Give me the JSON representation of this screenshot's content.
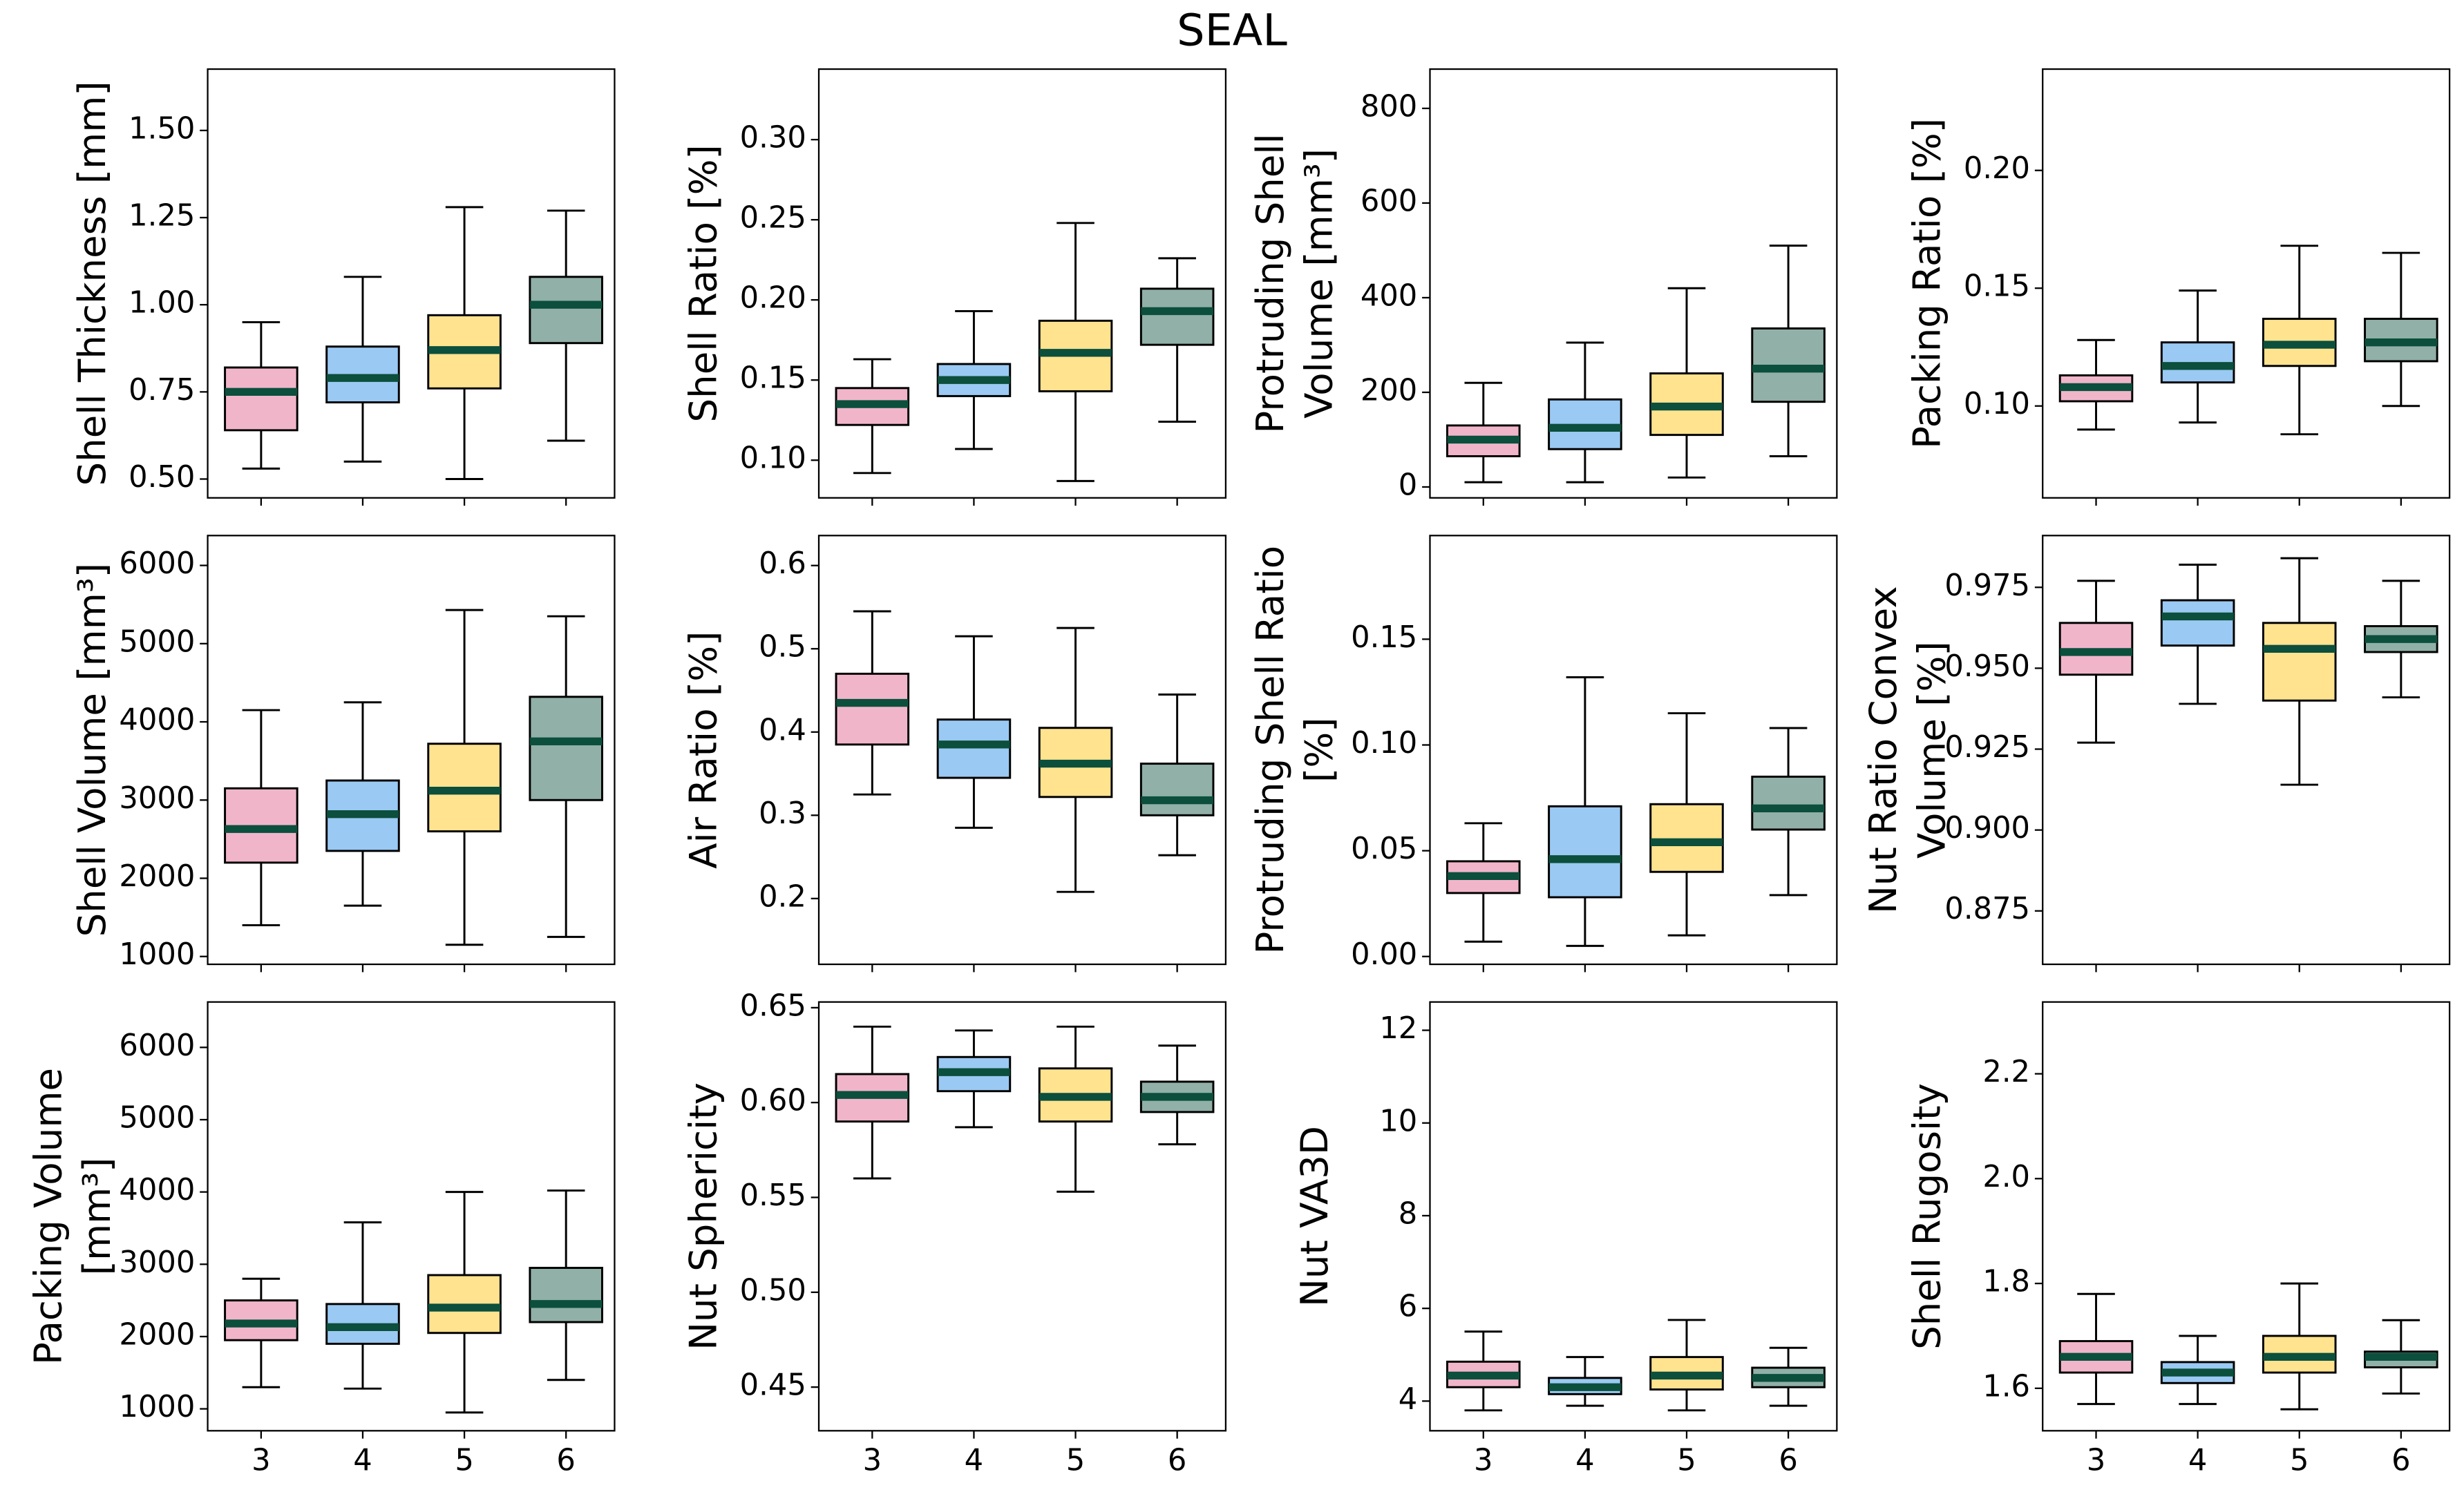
{
  "title": "SEAL",
  "chart_data": [
    {
      "type": "box",
      "ylabel": "Shell Thickness [mm]",
      "ylim": [
        0.446,
        1.676
      ],
      "yticks": [
        {
          "value": 0.5,
          "label": "0.50"
        },
        0.75,
        {
          "value": 1.0,
          "label": "1.00"
        },
        1.25,
        {
          "value": 1.5,
          "label": "1.50"
        }
      ],
      "colors": [
        "#e05a8a",
        "#1e88e5",
        "#ffc107",
        "#0b4f3c"
      ],
      "median_color": "#0b4f3c",
      "boxes": [
        {
          "whislo": 0.53,
          "q1": 0.64,
          "med": 0.75,
          "q3": 0.82,
          "whishi": 0.95
        },
        {
          "whislo": 0.55,
          "q1": 0.72,
          "med": 0.79,
          "q3": 0.88,
          "whishi": 1.08
        },
        {
          "whislo": 0.5,
          "q1": 0.76,
          "med": 0.87,
          "q3": 0.97,
          "whishi": 1.28
        },
        {
          "whislo": 0.61,
          "q1": 0.89,
          "med": 1.0,
          "q3": 1.08,
          "whishi": 1.27
        }
      ]
    },
    {
      "type": "box",
      "ylabel": "Shell Ratio [%]",
      "ylim": [
        0.0765,
        0.344
      ],
      "yticks": [
        {
          "value": 0.1,
          "label": "0.10"
        },
        0.15,
        {
          "value": 0.2,
          "label": "0.20"
        },
        0.25,
        {
          "value": 0.3,
          "label": "0.30"
        }
      ],
      "colors": [
        "#e05a8a",
        "#1e88e5",
        "#ffc107",
        "#0b4f3c"
      ],
      "median_color": "#0b4f3c",
      "boxes": [
        {
          "whislo": 0.092,
          "q1": 0.122,
          "med": 0.135,
          "q3": 0.145,
          "whishi": 0.163
        },
        {
          "whislo": 0.107,
          "q1": 0.14,
          "med": 0.15,
          "q3": 0.16,
          "whishi": 0.193
        },
        {
          "whislo": 0.087,
          "q1": 0.143,
          "med": 0.167,
          "q3": 0.187,
          "whishi": 0.248
        },
        {
          "whislo": 0.124,
          "q1": 0.172,
          "med": 0.193,
          "q3": 0.207,
          "whishi": 0.226
        }
      ]
    },
    {
      "type": "box",
      "ylabel": [
        "Protruding Shell",
        "Volume [mm³]"
      ],
      "ylim": [
        -23,
        883
      ],
      "yticks": [
        0,
        200,
        400,
        600,
        800
      ],
      "colors": [
        "#e05a8a",
        "#1e88e5",
        "#ffc107",
        "#0b4f3c"
      ],
      "median_color": "#0b4f3c",
      "boxes": [
        {
          "whislo": 10,
          "q1": 65,
          "med": 100,
          "q3": 130,
          "whishi": 220
        },
        {
          "whislo": 10,
          "q1": 80,
          "med": 125,
          "q3": 185,
          "whishi": 305
        },
        {
          "whislo": 20,
          "q1": 110,
          "med": 170,
          "q3": 240,
          "whishi": 420
        },
        {
          "whislo": 65,
          "q1": 180,
          "med": 250,
          "q3": 335,
          "whishi": 510
        }
      ]
    },
    {
      "type": "box",
      "ylabel": "Packing Ratio [%]",
      "ylim": [
        0.061,
        0.243
      ],
      "yticks": [
        {
          "value": 0.1,
          "label": "0.10"
        },
        0.15,
        {
          "value": 0.2,
          "label": "0.20"
        }
      ],
      "colors": [
        "#e05a8a",
        "#1e88e5",
        "#ffc107",
        "#0b4f3c"
      ],
      "median_color": "#0b4f3c",
      "boxes": [
        {
          "whislo": 0.09,
          "q1": 0.102,
          "med": 0.108,
          "q3": 0.113,
          "whishi": 0.128
        },
        {
          "whislo": 0.093,
          "q1": 0.11,
          "med": 0.117,
          "q3": 0.127,
          "whishi": 0.149
        },
        {
          "whislo": 0.088,
          "q1": 0.117,
          "med": 0.126,
          "q3": 0.137,
          "whishi": 0.168
        },
        {
          "whislo": 0.1,
          "q1": 0.119,
          "med": 0.127,
          "q3": 0.137,
          "whishi": 0.165
        }
      ]
    },
    {
      "type": "box",
      "ylabel": "Shell Volume [mm³]",
      "ylim": [
        900,
        6382
      ],
      "yticks": [
        1000,
        2000,
        3000,
        4000,
        5000,
        6000
      ],
      "colors": [
        "#e05a8a",
        "#1e88e5",
        "#ffc107",
        "#0b4f3c"
      ],
      "median_color": "#0b4f3c",
      "boxes": [
        {
          "whislo": 1400,
          "q1": 2200,
          "med": 2630,
          "q3": 3150,
          "whishi": 4150
        },
        {
          "whislo": 1650,
          "q1": 2350,
          "med": 2820,
          "q3": 3250,
          "whishi": 4250
        },
        {
          "whislo": 1150,
          "q1": 2600,
          "med": 3120,
          "q3": 3720,
          "whishi": 5430
        },
        {
          "whislo": 1250,
          "q1": 3000,
          "med": 3750,
          "q3": 4320,
          "whishi": 5350
        }
      ]
    },
    {
      "type": "box",
      "ylabel": "Air Ratio [%]",
      "ylim": [
        0.121,
        0.636
      ],
      "yticks": [
        0.2,
        0.3,
        0.4,
        0.5,
        0.6
      ],
      "colors": [
        "#e05a8a",
        "#1e88e5",
        "#ffc107",
        "#0b4f3c"
      ],
      "median_color": "#0b4f3c",
      "boxes": [
        {
          "whislo": 0.325,
          "q1": 0.385,
          "med": 0.435,
          "q3": 0.47,
          "whishi": 0.545
        },
        {
          "whislo": 0.285,
          "q1": 0.345,
          "med": 0.385,
          "q3": 0.415,
          "whishi": 0.515
        },
        {
          "whislo": 0.208,
          "q1": 0.322,
          "med": 0.362,
          "q3": 0.405,
          "whishi": 0.525
        },
        {
          "whislo": 0.252,
          "q1": 0.3,
          "med": 0.318,
          "q3": 0.362,
          "whishi": 0.445
        }
      ]
    },
    {
      "type": "box",
      "ylabel": [
        "Protruding Shell Ratio",
        "[%]"
      ],
      "ylim": [
        -0.0037,
        0.199
      ],
      "yticks": [
        {
          "value": 0,
          "label": "0.00"
        },
        0.05,
        {
          "value": 0.1,
          "label": "0.10"
        },
        0.15
      ],
      "colors": [
        "#e05a8a",
        "#1e88e5",
        "#ffc107",
        "#0b4f3c"
      ],
      "median_color": "#0b4f3c",
      "boxes": [
        {
          "whislo": 0.007,
          "q1": 0.03,
          "med": 0.038,
          "q3": 0.045,
          "whishi": 0.063
        },
        {
          "whislo": 0.005,
          "q1": 0.028,
          "med": 0.046,
          "q3": 0.071,
          "whishi": 0.132
        },
        {
          "whislo": 0.01,
          "q1": 0.04,
          "med": 0.054,
          "q3": 0.072,
          "whishi": 0.115
        },
        {
          "whislo": 0.029,
          "q1": 0.06,
          "med": 0.07,
          "q3": 0.085,
          "whishi": 0.108
        }
      ]
    },
    {
      "type": "box",
      "ylabel": [
        "Nut Ratio Convex",
        "Volume [%]"
      ],
      "ylim": [
        0.8585,
        0.991
      ],
      "yticks": [
        0.875,
        {
          "value": 0.9,
          "label": "0.900"
        },
        0.925,
        {
          "value": 0.95,
          "label": "0.950"
        },
        0.975
      ],
      "colors": [
        "#e05a8a",
        "#1e88e5",
        "#ffc107",
        "#0b4f3c"
      ],
      "median_color": "#0b4f3c",
      "boxes": [
        {
          "whislo": 0.927,
          "q1": 0.948,
          "med": 0.955,
          "q3": 0.964,
          "whishi": 0.977
        },
        {
          "whislo": 0.939,
          "q1": 0.957,
          "med": 0.966,
          "q3": 0.971,
          "whishi": 0.982
        },
        {
          "whislo": 0.914,
          "q1": 0.94,
          "med": 0.956,
          "q3": 0.964,
          "whishi": 0.984
        },
        {
          "whislo": 0.941,
          "q1": 0.955,
          "med": 0.959,
          "q3": 0.963,
          "whishi": 0.977
        }
      ]
    },
    {
      "type": "box",
      "ylabel": [
        "Packing Volume",
        "[mm³]"
      ],
      "ylim": [
        697,
        6628
      ],
      "yticks": [
        1000,
        2000,
        3000,
        4000,
        5000,
        6000
      ],
      "categories": [
        "3",
        "4",
        "5",
        "6"
      ],
      "colors": [
        "#e05a8a",
        "#1e88e5",
        "#ffc107",
        "#0b4f3c"
      ],
      "median_color": "#0b4f3c",
      "boxes": [
        {
          "whislo": 1300,
          "q1": 1950,
          "med": 2180,
          "q3": 2500,
          "whishi": 2800
        },
        {
          "whislo": 1280,
          "q1": 1900,
          "med": 2130,
          "q3": 2450,
          "whishi": 3580
        },
        {
          "whislo": 950,
          "q1": 2050,
          "med": 2400,
          "q3": 2850,
          "whishi": 4000
        },
        {
          "whislo": 1400,
          "q1": 2200,
          "med": 2450,
          "q3": 2950,
          "whishi": 4020
        }
      ]
    },
    {
      "type": "box",
      "ylabel": "Nut Sphericity",
      "ylim": [
        0.427,
        0.653
      ],
      "yticks": [
        0.45,
        {
          "value": 0.5,
          "label": "0.50"
        },
        0.55,
        {
          "value": 0.6,
          "label": "0.60"
        },
        0.65
      ],
      "categories": [
        "3",
        "4",
        "5",
        "6"
      ],
      "colors": [
        "#e05a8a",
        "#1e88e5",
        "#ffc107",
        "#0b4f3c"
      ],
      "median_color": "#0b4f3c",
      "boxes": [
        {
          "whislo": 0.56,
          "q1": 0.59,
          "med": 0.604,
          "q3": 0.615,
          "whishi": 0.64
        },
        {
          "whislo": 0.587,
          "q1": 0.606,
          "med": 0.616,
          "q3": 0.624,
          "whishi": 0.638
        },
        {
          "whislo": 0.553,
          "q1": 0.59,
          "med": 0.603,
          "q3": 0.618,
          "whishi": 0.64
        },
        {
          "whislo": 0.578,
          "q1": 0.595,
          "med": 0.603,
          "q3": 0.611,
          "whishi": 0.63
        }
      ]
    },
    {
      "type": "box",
      "ylabel": "Nut VA3D",
      "ylim": [
        3.36,
        12.61
      ],
      "yticks": [
        4,
        6,
        8,
        10,
        12
      ],
      "categories": [
        "3",
        "4",
        "5",
        "6"
      ],
      "colors": [
        "#e05a8a",
        "#1e88e5",
        "#ffc107",
        "#0b4f3c"
      ],
      "median_color": "#0b4f3c",
      "boxes": [
        {
          "whislo": 3.8,
          "q1": 4.3,
          "med": 4.55,
          "q3": 4.85,
          "whishi": 5.5
        },
        {
          "whislo": 3.9,
          "q1": 4.15,
          "med": 4.3,
          "q3": 4.5,
          "whishi": 4.95
        },
        {
          "whislo": 3.8,
          "q1": 4.25,
          "med": 4.55,
          "q3": 4.95,
          "whishi": 5.75
        },
        {
          "whislo": 3.9,
          "q1": 4.3,
          "med": 4.5,
          "q3": 4.72,
          "whishi": 5.15
        }
      ]
    },
    {
      "type": "box",
      "ylabel": "Shell Rugosity",
      "ylim": [
        1.519,
        2.337
      ],
      "yticks": [
        1.6,
        1.8,
        {
          "value": 2.0,
          "label": "2.0"
        },
        2.2
      ],
      "categories": [
        "3",
        "4",
        "5",
        "6"
      ],
      "colors": [
        "#e05a8a",
        "#1e88e5",
        "#ffc107",
        "#0b4f3c"
      ],
      "median_color": "#0b4f3c",
      "boxes": [
        {
          "whislo": 1.57,
          "q1": 1.63,
          "med": 1.66,
          "q3": 1.69,
          "whishi": 1.78
        },
        {
          "whislo": 1.57,
          "q1": 1.61,
          "med": 1.63,
          "q3": 1.65,
          "whishi": 1.7
        },
        {
          "whislo": 1.56,
          "q1": 1.63,
          "med": 1.66,
          "q3": 1.7,
          "whishi": 1.8
        },
        {
          "whislo": 1.59,
          "q1": 1.64,
          "med": 1.66,
          "q3": 1.67,
          "whishi": 1.73
        }
      ]
    }
  ]
}
